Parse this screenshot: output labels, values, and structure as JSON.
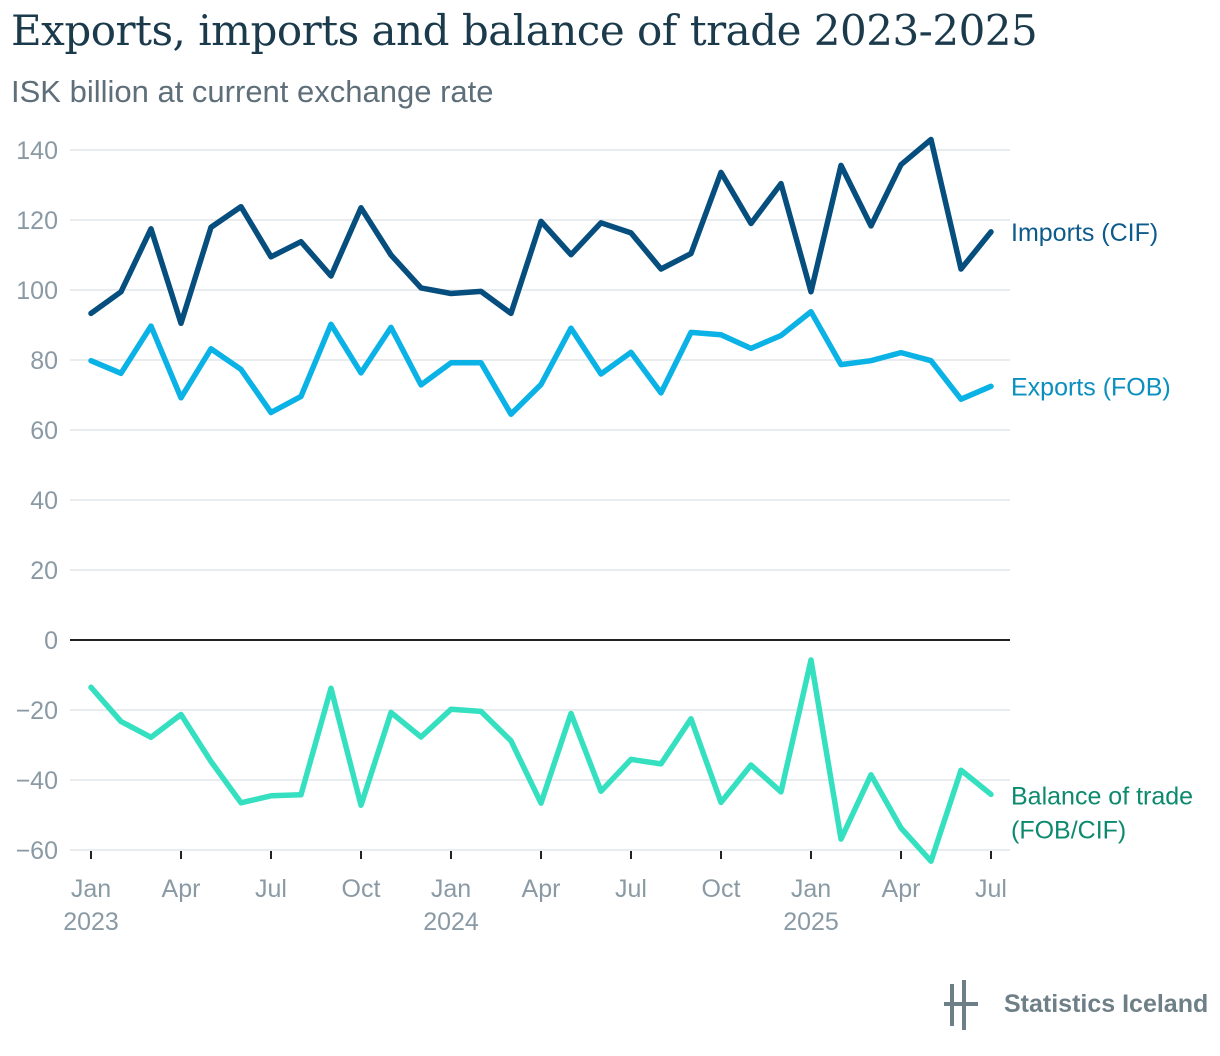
{
  "header": {
    "title": "Exports, imports and balance of trade 2023-2025",
    "subtitle": "ISK billion at current exchange rate"
  },
  "logo": {
    "text": "Statistics Iceland",
    "icon": "statistics-iceland-logo-icon",
    "color": "#6e7f88"
  },
  "chart_data": {
    "type": "line",
    "x": [
      "2023-01",
      "2023-02",
      "2023-03",
      "2023-04",
      "2023-05",
      "2023-06",
      "2023-07",
      "2023-08",
      "2023-09",
      "2023-10",
      "2023-11",
      "2023-12",
      "2024-01",
      "2024-02",
      "2024-03",
      "2024-04",
      "2024-05",
      "2024-06",
      "2024-07",
      "2024-08",
      "2024-09",
      "2024-10",
      "2024-11",
      "2024-12",
      "2025-01",
      "2025-02",
      "2025-03",
      "2025-04",
      "2025-05",
      "2025-06",
      "2025-07"
    ],
    "x_ticks": [
      {
        "label": "Jan",
        "year": "2023"
      },
      {
        "label": "Apr",
        "year": ""
      },
      {
        "label": "Jul",
        "year": ""
      },
      {
        "label": "Oct",
        "year": ""
      },
      {
        "label": "Jan",
        "year": "2024"
      },
      {
        "label": "Apr",
        "year": ""
      },
      {
        "label": "Jul",
        "year": ""
      },
      {
        "label": "Oct",
        "year": ""
      },
      {
        "label": "Jan",
        "year": "2025"
      },
      {
        "label": "Apr",
        "year": ""
      },
      {
        "label": "Jul",
        "year": ""
      }
    ],
    "y_ticks": [
      "140",
      "120",
      "100",
      "80",
      "60",
      "40",
      "20",
      "0",
      "−20",
      "−40",
      "−60"
    ],
    "ylim": [
      -60,
      140
    ],
    "grid": true,
    "series": [
      {
        "name": "Imports (CIF)",
        "color": "#064e7e",
        "label_color": "#0d5a8c",
        "values": [
          93.3,
          99.5,
          117.5,
          90.5,
          117.9,
          123.8,
          109.5,
          113.8,
          104.0,
          123.5,
          110.0,
          100.6,
          99.0,
          99.6,
          93.3,
          119.6,
          110.1,
          119.2,
          116.3,
          106.0,
          110.4,
          133.6,
          119.0,
          130.4,
          99.5,
          135.6,
          118.3,
          135.8,
          143.0,
          106.0,
          116.6
        ]
      },
      {
        "name": "Exports (FOB)",
        "color": "#0ab2e6",
        "label_color": "#0a8fbf",
        "values": [
          79.8,
          76.2,
          89.7,
          69.2,
          83.2,
          77.3,
          65.0,
          69.6,
          90.2,
          76.3,
          89.3,
          72.9,
          79.2,
          79.2,
          64.5,
          73.0,
          89.1,
          76.0,
          82.2,
          70.6,
          87.9,
          87.2,
          83.3,
          87.0,
          93.8,
          78.7,
          79.8,
          82.1,
          79.8,
          68.8,
          72.5
        ]
      },
      {
        "name": "Balance of trade (FOB/CIF)",
        "name_lines": [
          "Balance of trade",
          "(FOB/CIF)"
        ],
        "color": "#35e0c0",
        "label_color": "#0c8a6e",
        "values": [
          -13.5,
          -23.3,
          -27.8,
          -21.3,
          -34.7,
          -46.5,
          -44.5,
          -44.2,
          -13.8,
          -47.2,
          -20.7,
          -27.7,
          -19.8,
          -20.4,
          -28.8,
          -46.6,
          -21.0,
          -43.2,
          -34.1,
          -35.4,
          -22.5,
          -46.4,
          -35.7,
          -43.4,
          -5.7,
          -56.9,
          -38.5,
          -53.7,
          -63.2,
          -37.2,
          -44.1
        ]
      }
    ]
  }
}
